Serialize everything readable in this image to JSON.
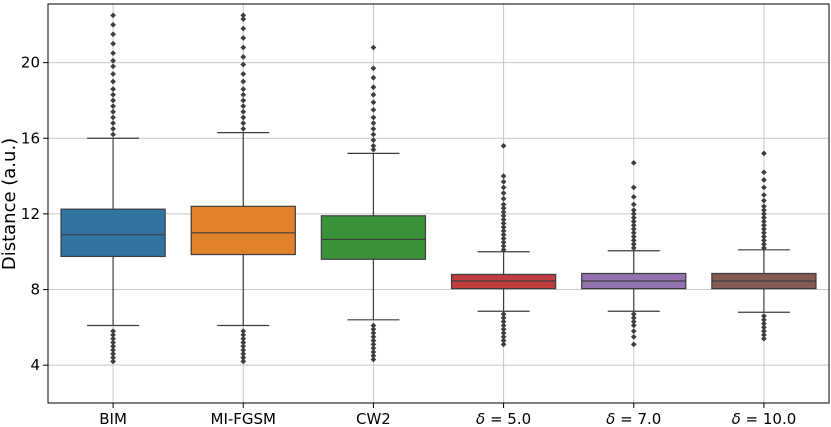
{
  "chart_data": {
    "type": "box",
    "title": "",
    "xlabel": "",
    "ylabel": "Distance (a.u.)",
    "ylim": [
      2.0,
      23.1
    ],
    "yticks": [
      4,
      8,
      12,
      16,
      20
    ],
    "grid": true,
    "categories": [
      "BIM",
      "MI-FGSM",
      "CW2",
      "δ = 5.0",
      "δ = 7.0",
      "δ = 10.0"
    ],
    "category_parts": [
      {
        "symbol": "",
        "text": "BIM"
      },
      {
        "symbol": "",
        "text": "MI-FGSM"
      },
      {
        "symbol": "",
        "text": "CW2"
      },
      {
        "symbol": "δ",
        "text": " = 5.0"
      },
      {
        "symbol": "δ",
        "text": " = 7.0"
      },
      {
        "symbol": "δ",
        "text": " = 10.0"
      }
    ],
    "boxes": [
      {
        "name": "BIM",
        "color": "#3274a1",
        "q1": 9.75,
        "median": 10.9,
        "q3": 12.25,
        "whisker_low": 6.1,
        "whisker_high": 16.0,
        "outliers": [
          4.2,
          4.4,
          4.6,
          4.8,
          5.0,
          5.2,
          5.4,
          5.6,
          5.8,
          16.2,
          16.5,
          16.8,
          17.1,
          17.4,
          17.7,
          18.0,
          18.3,
          18.6,
          19.0,
          19.4,
          19.8,
          20.1,
          20.5,
          21.0,
          21.5,
          22.0,
          22.5
        ]
      },
      {
        "name": "MI-FGSM",
        "color": "#e1812c",
        "q1": 9.85,
        "median": 11.0,
        "q3": 12.4,
        "whisker_low": 6.1,
        "whisker_high": 16.3,
        "outliers": [
          4.2,
          4.4,
          4.6,
          4.8,
          5.0,
          5.2,
          5.4,
          5.6,
          5.8,
          16.5,
          16.8,
          17.1,
          17.4,
          17.7,
          18.0,
          18.3,
          18.6,
          19.0,
          19.4,
          19.9,
          20.3,
          20.8,
          21.3,
          21.8,
          22.3,
          22.5
        ]
      },
      {
        "name": "CW2",
        "color": "#3a923a",
        "q1": 9.6,
        "median": 10.65,
        "q3": 11.9,
        "whisker_low": 6.4,
        "whisker_high": 15.2,
        "outliers": [
          4.3,
          4.5,
          4.7,
          4.9,
          5.1,
          5.3,
          5.5,
          5.7,
          5.9,
          6.1,
          15.4,
          15.6,
          15.9,
          16.2,
          16.5,
          16.8,
          17.1,
          17.5,
          17.9,
          18.3,
          18.7,
          19.2,
          19.7,
          20.8
        ]
      },
      {
        "name": "δ = 5.0",
        "color": "#c03d3e",
        "q1": 8.05,
        "median": 8.45,
        "q3": 8.8,
        "whisker_low": 6.85,
        "whisker_high": 10.0,
        "outliers": [
          5.1,
          5.3,
          5.5,
          5.7,
          5.9,
          6.1,
          6.3,
          6.5,
          6.7,
          10.1,
          10.3,
          10.5,
          10.7,
          10.9,
          11.1,
          11.3,
          11.5,
          11.7,
          11.9,
          12.1,
          12.3,
          12.5,
          12.8,
          13.1,
          13.4,
          13.7,
          14.0,
          15.6
        ]
      },
      {
        "name": "δ = 7.0",
        "color": "#9372b2",
        "q1": 8.05,
        "median": 8.45,
        "q3": 8.85,
        "whisker_low": 6.85,
        "whisker_high": 10.05,
        "outliers": [
          5.1,
          5.5,
          5.8,
          6.1,
          6.3,
          6.5,
          6.7,
          10.2,
          10.4,
          10.6,
          10.8,
          11.0,
          11.2,
          11.4,
          11.6,
          11.8,
          12.0,
          12.2,
          12.5,
          12.9,
          13.4,
          14.7
        ]
      },
      {
        "name": "δ = 10.0",
        "color": "#845b53",
        "q1": 8.05,
        "median": 8.45,
        "q3": 8.85,
        "whisker_low": 6.8,
        "whisker_high": 10.1,
        "outliers": [
          5.4,
          5.6,
          5.8,
          6.0,
          6.2,
          6.4,
          6.6,
          10.2,
          10.4,
          10.6,
          10.8,
          11.0,
          11.2,
          11.4,
          11.6,
          11.8,
          12.0,
          12.2,
          12.4,
          12.7,
          13.0,
          13.4,
          13.8,
          14.2,
          15.2
        ]
      }
    ]
  }
}
